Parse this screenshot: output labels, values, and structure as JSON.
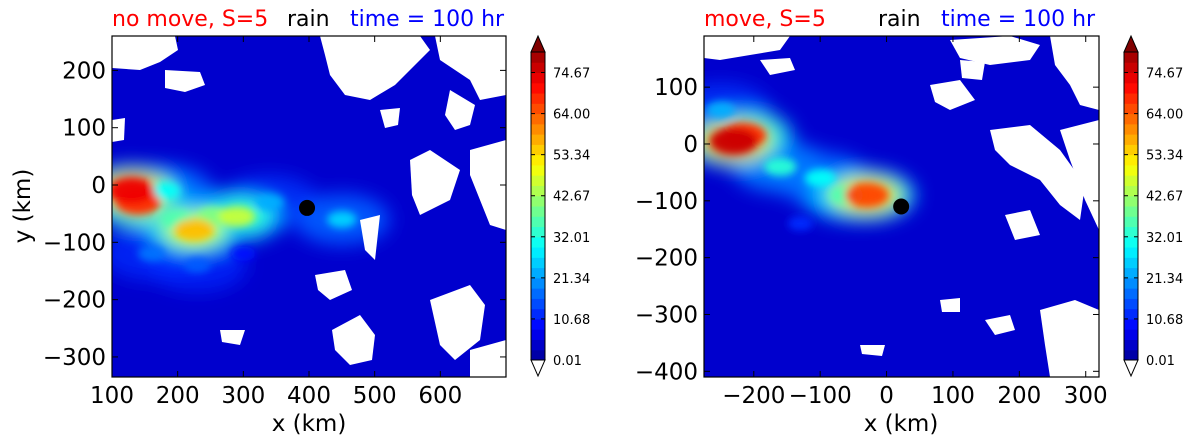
{
  "colors": {
    "title_left": "#ff0000",
    "title_middle": "#000000",
    "title_right": "#0000ff",
    "background_field": "#0000cd",
    "marker": "#000000",
    "no_data": "#ffffff"
  },
  "colormap": "jet",
  "chart_data": [
    {
      "type": "heatmap",
      "subtype": "filled-contour",
      "title_left": "no move, S=5",
      "title_middle": "rain",
      "title_right": "time = 100 hr",
      "xlabel": "x (km)",
      "ylabel": "y (km)",
      "xlim": [
        100,
        700
      ],
      "ylim": [
        -335,
        260
      ],
      "xticks": [
        100,
        200,
        300,
        400,
        500,
        600
      ],
      "yticks": [
        200,
        100,
        0,
        -100,
        -200,
        -300
      ],
      "xticklabels": [
        "100",
        "200",
        "300",
        "400",
        "500",
        "600"
      ],
      "yticklabels": [
        "200",
        "100",
        "0",
        "−100",
        "−200",
        "−300"
      ],
      "marker": {
        "x": 397,
        "y": -40
      },
      "features": [
        {
          "x": 130,
          "y": -10,
          "value": 75
        },
        {
          "x": 140,
          "y": -30,
          "value": 70
        },
        {
          "x": 225,
          "y": -78,
          "value": 58
        },
        {
          "x": 290,
          "y": -55,
          "value": 48
        },
        {
          "x": 255,
          "y": -55,
          "value": 42
        },
        {
          "x": 200,
          "y": -60,
          "value": 38
        },
        {
          "x": 180,
          "y": -10,
          "value": 32
        },
        {
          "x": 340,
          "y": -30,
          "value": 25
        },
        {
          "x": 450,
          "y": -60,
          "value": 28
        },
        {
          "x": 160,
          "y": -120,
          "value": 20
        },
        {
          "x": 230,
          "y": -140,
          "value": 18
        },
        {
          "x": 300,
          "y": -120,
          "value": 12
        }
      ],
      "colorbar": {
        "ticks": [
          "0.01",
          "10.68",
          "21.34",
          "32.01",
          "42.67",
          "53.34",
          "64.00",
          "74.67"
        ],
        "min": 0.01,
        "max": 80,
        "extend": "both"
      }
    },
    {
      "type": "heatmap",
      "subtype": "filled-contour",
      "title_left": "move, S=5",
      "title_middle": "rain",
      "title_right": "time = 100 hr",
      "xlabel": "x (km)",
      "ylabel": "",
      "xlim": [
        -275,
        320
      ],
      "ylim": [
        -410,
        190
      ],
      "xticks": [
        -200,
        -100,
        0,
        100,
        200,
        300
      ],
      "yticks": [
        100,
        0,
        -100,
        -200,
        -300,
        -400
      ],
      "xticklabels": [
        "−200",
        "−100",
        "0",
        "100",
        "200",
        "300"
      ],
      "yticklabels": [
        "100",
        "0",
        "−100",
        "−200",
        "−300",
        "−400"
      ],
      "marker": {
        "x": 22,
        "y": -110
      },
      "features": [
        {
          "x": -230,
          "y": 5,
          "value": 78
        },
        {
          "x": -215,
          "y": 15,
          "value": 70
        },
        {
          "x": -30,
          "y": -90,
          "value": 68
        },
        {
          "x": -160,
          "y": -40,
          "value": 35
        },
        {
          "x": -100,
          "y": -60,
          "value": 32
        },
        {
          "x": -60,
          "y": -90,
          "value": 38
        },
        {
          "x": -250,
          "y": 60,
          "value": 25
        },
        {
          "x": -130,
          "y": -140,
          "value": 14
        }
      ],
      "colorbar": {
        "ticks": [
          "0.01",
          "10.68",
          "21.34",
          "32.01",
          "42.67",
          "53.34",
          "64.00",
          "74.67"
        ],
        "min": 0.01,
        "max": 80,
        "extend": "both"
      }
    }
  ]
}
